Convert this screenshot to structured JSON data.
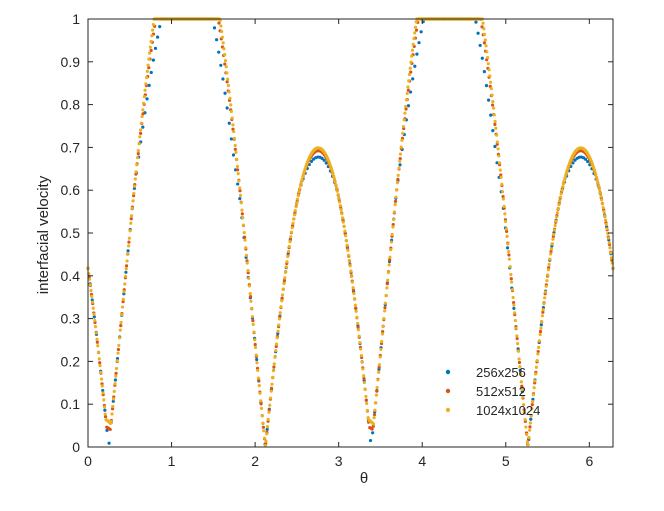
{
  "chart_data": {
    "type": "scatter",
    "xlabel": "θ",
    "ylabel": "interfacial velocity",
    "xlim": [
      0,
      6.2832
    ],
    "ylim": [
      0,
      1
    ],
    "x_ticks": [
      "0",
      "1",
      "2",
      "3",
      "4",
      "5",
      "6"
    ],
    "y_ticks": [
      "0",
      "0.1",
      "0.2",
      "0.3",
      "0.4",
      "0.5",
      "0.6",
      "0.7",
      "0.8",
      "0.9",
      "1"
    ],
    "grid": false,
    "legend_position": "lower-right",
    "x_range": [
      0,
      6.2832
    ],
    "series": [
      {
        "name": "256x256",
        "color": "#0072BD",
        "points": 250,
        "peak": 0.91,
        "dip": 0.005,
        "shoulder_depth": 0.03
      },
      {
        "name": "512x512",
        "color": "#D95319",
        "points": 450,
        "peak": 0.97,
        "dip": 0.05
      },
      {
        "name": "1024x1024",
        "color": "#EDB120",
        "points": 700,
        "peak": 0.995,
        "dip": 0.068
      }
    ]
  }
}
